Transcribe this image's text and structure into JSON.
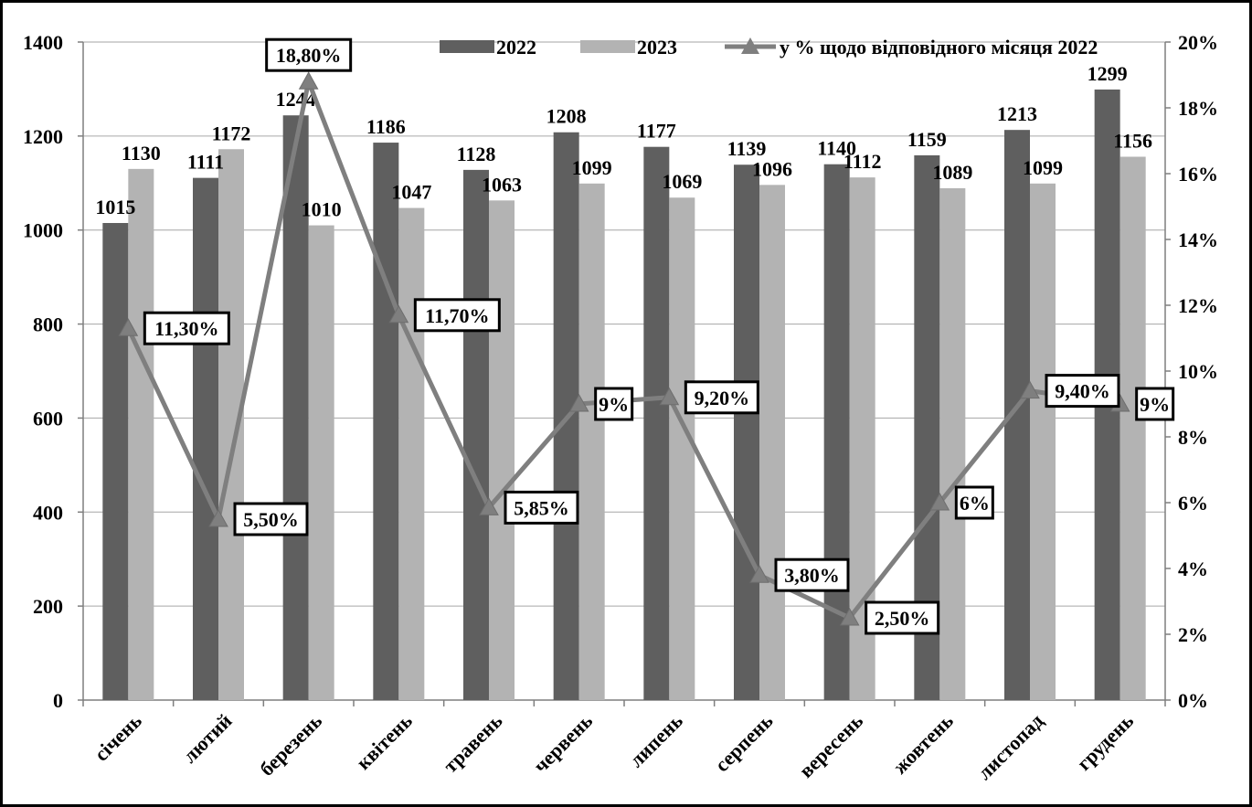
{
  "chart_data": {
    "type": "bar",
    "categories": [
      "січень",
      "лютий",
      "березень",
      "квітень",
      "травень",
      "червень",
      "липень",
      "серпень",
      "вересень",
      "жовтень",
      "листопад",
      "грудень"
    ],
    "series": [
      {
        "name": "2022",
        "type": "bar",
        "axis": "left",
        "color": "#5f5f5f",
        "values": [
          1015,
          1111,
          1244,
          1186,
          1128,
          1208,
          1177,
          1139,
          1140,
          1159,
          1213,
          1299
        ],
        "labels": [
          "1015",
          "1111",
          "1244",
          "1186",
          "1128",
          "1208",
          "1177",
          "1139",
          "1140",
          "1159",
          "1213",
          "1299"
        ]
      },
      {
        "name": "2023",
        "type": "bar",
        "axis": "left",
        "color": "#b3b3b3",
        "values": [
          1130,
          1172,
          1010,
          1047,
          1063,
          1099,
          1069,
          1096,
          1112,
          1089,
          1099,
          1156
        ],
        "labels": [
          "1130",
          "1172",
          "1010",
          "1047",
          "1063",
          "1099",
          "1069",
          "1096",
          "1112",
          "1089",
          "1099",
          "1156"
        ]
      },
      {
        "name": "у % щодо відповідного місяця 2022",
        "type": "line",
        "axis": "right",
        "color": "#7f7f7f",
        "values": [
          11.3,
          5.5,
          18.8,
          11.7,
          5.85,
          9,
          9.2,
          3.8,
          2.5,
          6,
          9.4,
          9
        ],
        "labels": [
          "11,30%",
          "5,50%",
          "18,80%",
          "11,70%",
          "5,85%",
          "9%",
          "9,20%",
          "3,80%",
          "2,50%",
          "6%",
          "9,40%",
          "9%"
        ]
      }
    ],
    "y_left": {
      "min": 0,
      "max": 1400,
      "step": 200,
      "ticks": [
        "0",
        "200",
        "400",
        "600",
        "800",
        "1000",
        "1200",
        "1400"
      ]
    },
    "y_right": {
      "min": 0,
      "max": 20,
      "step": 2,
      "ticks": [
        "0%",
        "2%",
        "4%",
        "6%",
        "8%",
        "10%",
        "12%",
        "14%",
        "16%",
        "18%",
        "20%"
      ]
    },
    "grid": true,
    "legend_position": "top"
  }
}
